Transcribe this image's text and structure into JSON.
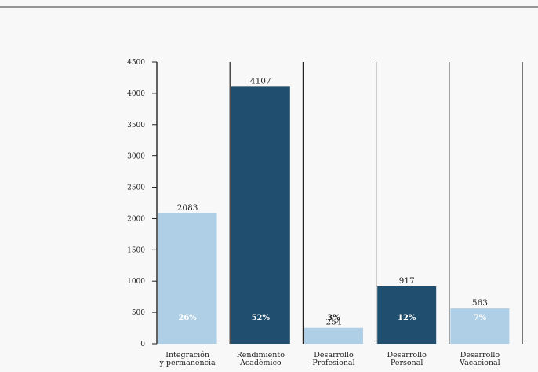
{
  "chart_data": {
    "type": "bar",
    "title": "",
    "xlabel": "",
    "ylabel": "",
    "ylim": [
      0,
      4500
    ],
    "yticks": [
      0,
      500,
      1000,
      1500,
      2000,
      2500,
      3000,
      3500,
      4000,
      4500
    ],
    "grid": false,
    "categories": [
      [
        "Integración",
        "y permanencia"
      ],
      [
        "Rendimiento",
        "Académico"
      ],
      [
        "Desarrollo",
        "Profesional"
      ],
      [
        "Desarrollo",
        "Personal"
      ],
      [
        "Desarrollo",
        "Vacacional"
      ]
    ],
    "values": [
      2083,
      4107,
      254,
      917,
      563
    ],
    "percent_labels": [
      "26%",
      "52%",
      "3%",
      "12%",
      "7%"
    ],
    "bar_colors": [
      "#aecfe6",
      "#1f4e6e",
      "#aecfe6",
      "#1f4e6e",
      "#aecfe6"
    ],
    "percent_label_colors": [
      "#ffffff",
      "#ffffff",
      "#222222",
      "#ffffff",
      "#ffffff"
    ]
  }
}
